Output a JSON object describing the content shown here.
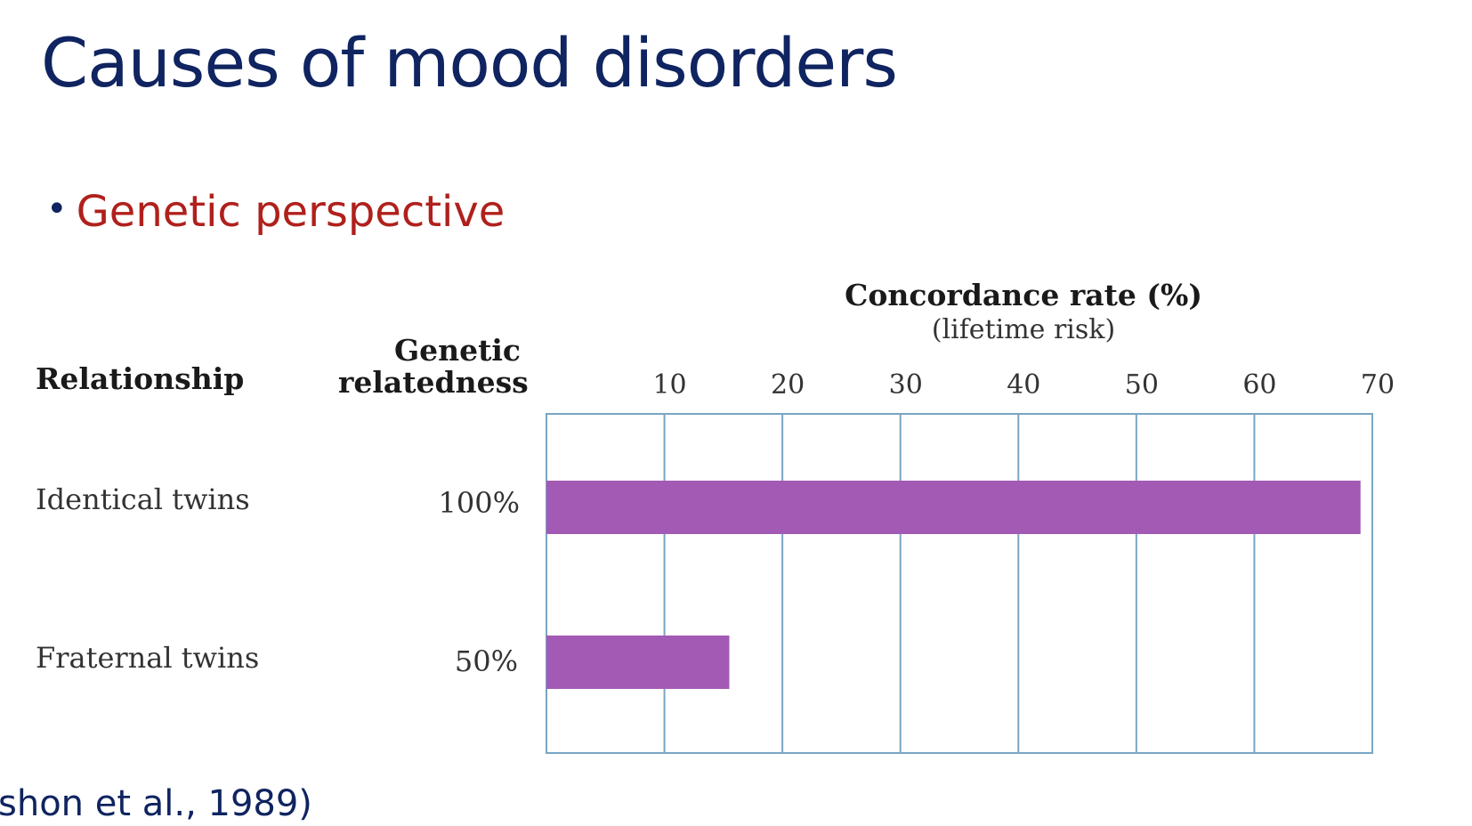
{
  "slide": {
    "title": "Causes of mood disorders",
    "bullet": "Genetic perspective",
    "citation": "shon et al., 1989)"
  },
  "table": {
    "relationship_header": "Relationship",
    "relatedness_header_line1": "Genetic",
    "relatedness_header_line2": "relatedness",
    "rows": [
      {
        "relationship": "Identical twins",
        "relatedness": "100%"
      },
      {
        "relationship": "Fraternal twins",
        "relatedness": "50%"
      }
    ]
  },
  "chart_data": {
    "type": "bar",
    "orientation": "horizontal",
    "title": "Concordance rate (%)",
    "subtitle": "(lifetime risk)",
    "categories": [
      "Identical twins",
      "Fraternal twins"
    ],
    "values": [
      69,
      15.5
    ],
    "xlim": [
      0,
      70
    ],
    "ticks": [
      10,
      20,
      30,
      40,
      50,
      60,
      70
    ],
    "grid": true,
    "bar_color": "#a35ab4",
    "grid_color": "#7aa5c4"
  }
}
